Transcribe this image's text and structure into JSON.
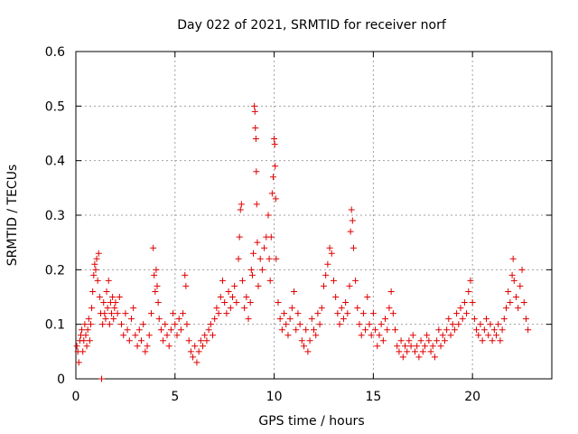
{
  "chart_data": {
    "type": "scatter",
    "title": "Day 022 of 2021, SRMTID for receiver norf",
    "xlabel": "GPS time / hours",
    "ylabel": "SRMTID / TECUs",
    "xlim": [
      0,
      24
    ],
    "ylim": [
      0,
      0.6
    ],
    "xticks": [
      0,
      5,
      10,
      15,
      20
    ],
    "xtick_labels": [
      "0",
      "5",
      "10",
      "15",
      "20"
    ],
    "yticks": [
      0,
      0.1,
      0.2,
      0.3,
      0.4,
      0.5,
      0.6
    ],
    "ytick_labels": [
      "0",
      "0.1",
      "0.2",
      "0.3",
      "0.4",
      "0.5",
      "0.6"
    ],
    "grid": true,
    "marker": "+",
    "color": "#e00000",
    "series": [
      {
        "name": "SRMTID",
        "points": [
          [
            0.05,
            0.06
          ],
          [
            0.1,
            0.05
          ],
          [
            0.15,
            0.03
          ],
          [
            0.2,
            0.07
          ],
          [
            0.25,
            0.08
          ],
          [
            0.3,
            0.09
          ],
          [
            0.35,
            0.05
          ],
          [
            0.4,
            0.07
          ],
          [
            0.45,
            0.1
          ],
          [
            0.5,
            0.08
          ],
          [
            0.55,
            0.06
          ],
          [
            0.6,
            0.09
          ],
          [
            0.65,
            0.11
          ],
          [
            0.7,
            0.07
          ],
          [
            0.75,
            0.1
          ],
          [
            0.8,
            0.13
          ],
          [
            0.85,
            0.16
          ],
          [
            0.9,
            0.19
          ],
          [
            0.95,
            0.21
          ],
          [
            1.0,
            0.2
          ],
          [
            1.05,
            0.22
          ],
          [
            1.1,
            0.18
          ],
          [
            1.15,
            0.23
          ],
          [
            1.2,
            0.15
          ],
          [
            1.25,
            0.12
          ],
          [
            1.3,
            0.0
          ],
          [
            1.35,
            0.1
          ],
          [
            1.4,
            0.14
          ],
          [
            1.45,
            0.12
          ],
          [
            1.5,
            0.11
          ],
          [
            1.55,
            0.16
          ],
          [
            1.6,
            0.13
          ],
          [
            1.65,
            0.18
          ],
          [
            1.7,
            0.1
          ],
          [
            1.75,
            0.14
          ],
          [
            1.8,
            0.12
          ],
          [
            1.85,
            0.15
          ],
          [
            1.9,
            0.11
          ],
          [
            1.95,
            0.13
          ],
          [
            2.0,
            0.14
          ],
          [
            2.1,
            0.12
          ],
          [
            2.2,
            0.15
          ],
          [
            2.3,
            0.1
          ],
          [
            2.4,
            0.08
          ],
          [
            2.5,
            0.12
          ],
          [
            2.6,
            0.09
          ],
          [
            2.7,
            0.07
          ],
          [
            2.8,
            0.11
          ],
          [
            2.9,
            0.13
          ],
          [
            3.0,
            0.08
          ],
          [
            3.1,
            0.06
          ],
          [
            3.2,
            0.09
          ],
          [
            3.3,
            0.07
          ],
          [
            3.4,
            0.1
          ],
          [
            3.5,
            0.05
          ],
          [
            3.6,
            0.06
          ],
          [
            3.7,
            0.08
          ],
          [
            3.8,
            0.12
          ],
          [
            3.9,
            0.24
          ],
          [
            3.95,
            0.19
          ],
          [
            4.0,
            0.16
          ],
          [
            4.05,
            0.2
          ],
          [
            4.1,
            0.17
          ],
          [
            4.15,
            0.14
          ],
          [
            4.2,
            0.11
          ],
          [
            4.3,
            0.09
          ],
          [
            4.4,
            0.07
          ],
          [
            4.5,
            0.1
          ],
          [
            4.6,
            0.08
          ],
          [
            4.7,
            0.06
          ],
          [
            4.8,
            0.09
          ],
          [
            4.9,
            0.12
          ],
          [
            5.0,
            0.1
          ],
          [
            5.1,
            0.08
          ],
          [
            5.2,
            0.11
          ],
          [
            5.3,
            0.09
          ],
          [
            5.4,
            0.12
          ],
          [
            5.5,
            0.19
          ],
          [
            5.55,
            0.17
          ],
          [
            5.6,
            0.1
          ],
          [
            5.7,
            0.07
          ],
          [
            5.8,
            0.05
          ],
          [
            5.9,
            0.04
          ],
          [
            6.0,
            0.06
          ],
          [
            6.1,
            0.03
          ],
          [
            6.2,
            0.05
          ],
          [
            6.3,
            0.07
          ],
          [
            6.4,
            0.06
          ],
          [
            6.5,
            0.08
          ],
          [
            6.6,
            0.07
          ],
          [
            6.7,
            0.09
          ],
          [
            6.8,
            0.1
          ],
          [
            6.9,
            0.08
          ],
          [
            7.0,
            0.11
          ],
          [
            7.1,
            0.13
          ],
          [
            7.2,
            0.12
          ],
          [
            7.3,
            0.15
          ],
          [
            7.4,
            0.18
          ],
          [
            7.5,
            0.14
          ],
          [
            7.6,
            0.12
          ],
          [
            7.7,
            0.16
          ],
          [
            7.8,
            0.13
          ],
          [
            7.9,
            0.15
          ],
          [
            8.0,
            0.17
          ],
          [
            8.1,
            0.14
          ],
          [
            8.2,
            0.22
          ],
          [
            8.25,
            0.26
          ],
          [
            8.3,
            0.31
          ],
          [
            8.35,
            0.32
          ],
          [
            8.4,
            0.18
          ],
          [
            8.5,
            0.13
          ],
          [
            8.6,
            0.15
          ],
          [
            8.7,
            0.11
          ],
          [
            8.8,
            0.14
          ],
          [
            8.85,
            0.2
          ],
          [
            8.9,
            0.19
          ],
          [
            8.95,
            0.23
          ],
          [
            9.0,
            0.5
          ],
          [
            9.03,
            0.49
          ],
          [
            9.05,
            0.46
          ],
          [
            9.08,
            0.44
          ],
          [
            9.1,
            0.38
          ],
          [
            9.12,
            0.32
          ],
          [
            9.15,
            0.25
          ],
          [
            9.2,
            0.17
          ],
          [
            9.3,
            0.22
          ],
          [
            9.4,
            0.2
          ],
          [
            9.5,
            0.24
          ],
          [
            9.6,
            0.26
          ],
          [
            9.7,
            0.3
          ],
          [
            9.75,
            0.22
          ],
          [
            9.8,
            0.18
          ],
          [
            9.85,
            0.26
          ],
          [
            9.9,
            0.34
          ],
          [
            9.95,
            0.37
          ],
          [
            10.0,
            0.44
          ],
          [
            10.03,
            0.43
          ],
          [
            10.05,
            0.39
          ],
          [
            10.08,
            0.33
          ],
          [
            10.1,
            0.22
          ],
          [
            10.2,
            0.14
          ],
          [
            10.3,
            0.11
          ],
          [
            10.4,
            0.09
          ],
          [
            10.5,
            0.12
          ],
          [
            10.6,
            0.1
          ],
          [
            10.7,
            0.08
          ],
          [
            10.8,
            0.11
          ],
          [
            10.9,
            0.13
          ],
          [
            11.0,
            0.16
          ],
          [
            11.1,
            0.09
          ],
          [
            11.2,
            0.12
          ],
          [
            11.3,
            0.1
          ],
          [
            11.4,
            0.07
          ],
          [
            11.5,
            0.06
          ],
          [
            11.6,
            0.09
          ],
          [
            11.7,
            0.05
          ],
          [
            11.8,
            0.07
          ],
          [
            11.9,
            0.11
          ],
          [
            12.0,
            0.09
          ],
          [
            12.1,
            0.08
          ],
          [
            12.2,
            0.12
          ],
          [
            12.3,
            0.1
          ],
          [
            12.4,
            0.13
          ],
          [
            12.5,
            0.17
          ],
          [
            12.6,
            0.19
          ],
          [
            12.7,
            0.21
          ],
          [
            12.8,
            0.24
          ],
          [
            12.9,
            0.23
          ],
          [
            13.0,
            0.18
          ],
          [
            13.1,
            0.15
          ],
          [
            13.2,
            0.12
          ],
          [
            13.3,
            0.1
          ],
          [
            13.4,
            0.13
          ],
          [
            13.5,
            0.11
          ],
          [
            13.6,
            0.14
          ],
          [
            13.7,
            0.12
          ],
          [
            13.8,
            0.17
          ],
          [
            13.85,
            0.27
          ],
          [
            13.9,
            0.31
          ],
          [
            13.95,
            0.29
          ],
          [
            14.0,
            0.24
          ],
          [
            14.1,
            0.18
          ],
          [
            14.2,
            0.13
          ],
          [
            14.3,
            0.1
          ],
          [
            14.4,
            0.08
          ],
          [
            14.5,
            0.12
          ],
          [
            14.6,
            0.09
          ],
          [
            14.7,
            0.15
          ],
          [
            14.8,
            0.1
          ],
          [
            14.9,
            0.08
          ],
          [
            15.0,
            0.12
          ],
          [
            15.1,
            0.09
          ],
          [
            15.2,
            0.06
          ],
          [
            15.3,
            0.08
          ],
          [
            15.4,
            0.1
          ],
          [
            15.5,
            0.07
          ],
          [
            15.6,
            0.11
          ],
          [
            15.7,
            0.09
          ],
          [
            15.8,
            0.13
          ],
          [
            15.9,
            0.16
          ],
          [
            16.0,
            0.12
          ],
          [
            16.1,
            0.09
          ],
          [
            16.2,
            0.06
          ],
          [
            16.3,
            0.05
          ],
          [
            16.4,
            0.07
          ],
          [
            16.5,
            0.04
          ],
          [
            16.6,
            0.06
          ],
          [
            16.7,
            0.05
          ],
          [
            16.8,
            0.07
          ],
          [
            16.9,
            0.06
          ],
          [
            17.0,
            0.08
          ],
          [
            17.1,
            0.05
          ],
          [
            17.2,
            0.06
          ],
          [
            17.3,
            0.04
          ],
          [
            17.4,
            0.07
          ],
          [
            17.5,
            0.05
          ],
          [
            17.6,
            0.06
          ],
          [
            17.7,
            0.08
          ],
          [
            17.8,
            0.07
          ],
          [
            17.9,
            0.05
          ],
          [
            18.0,
            0.06
          ],
          [
            18.1,
            0.04
          ],
          [
            18.2,
            0.07
          ],
          [
            18.3,
            0.09
          ],
          [
            18.4,
            0.06
          ],
          [
            18.5,
            0.08
          ],
          [
            18.6,
            0.07
          ],
          [
            18.7,
            0.09
          ],
          [
            18.8,
            0.11
          ],
          [
            18.9,
            0.08
          ],
          [
            19.0,
            0.1
          ],
          [
            19.1,
            0.09
          ],
          [
            19.2,
            0.12
          ],
          [
            19.3,
            0.1
          ],
          [
            19.4,
            0.13
          ],
          [
            19.5,
            0.11
          ],
          [
            19.6,
            0.14
          ],
          [
            19.7,
            0.12
          ],
          [
            19.8,
            0.16
          ],
          [
            19.9,
            0.18
          ],
          [
            20.0,
            0.14
          ],
          [
            20.1,
            0.11
          ],
          [
            20.2,
            0.09
          ],
          [
            20.3,
            0.08
          ],
          [
            20.4,
            0.1
          ],
          [
            20.5,
            0.07
          ],
          [
            20.6,
            0.09
          ],
          [
            20.7,
            0.11
          ],
          [
            20.8,
            0.08
          ],
          [
            20.9,
            0.1
          ],
          [
            21.0,
            0.07
          ],
          [
            21.1,
            0.09
          ],
          [
            21.2,
            0.08
          ],
          [
            21.3,
            0.1
          ],
          [
            21.4,
            0.07
          ],
          [
            21.5,
            0.09
          ],
          [
            21.6,
            0.11
          ],
          [
            21.7,
            0.13
          ],
          [
            21.8,
            0.16
          ],
          [
            21.9,
            0.14
          ],
          [
            22.0,
            0.19
          ],
          [
            22.05,
            0.22
          ],
          [
            22.1,
            0.18
          ],
          [
            22.2,
            0.15
          ],
          [
            22.3,
            0.13
          ],
          [
            22.4,
            0.17
          ],
          [
            22.5,
            0.2
          ],
          [
            22.6,
            0.14
          ],
          [
            22.7,
            0.11
          ],
          [
            22.8,
            0.09
          ]
        ]
      }
    ]
  }
}
